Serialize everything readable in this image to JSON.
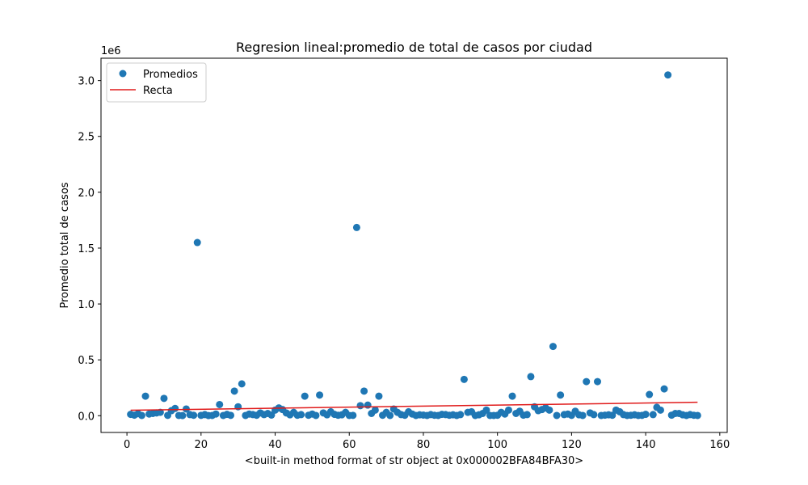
{
  "chart_data": {
    "type": "scatter",
    "title": "Regresion lineal:promedio de total de casos por ciudad",
    "xlabel": "<built-in method format of str object at 0x000002BFA84BFA30>",
    "ylabel": "Promedio total de casos",
    "y_offset_text": "1e6",
    "xlim": [
      -7,
      162
    ],
    "ylim": [
      -0.15,
      3.2
    ],
    "x_ticks": [
      0,
      20,
      40,
      60,
      80,
      100,
      120,
      140,
      160
    ],
    "x_tick_labels": [
      "0",
      "20",
      "40",
      "60",
      "80",
      "100",
      "120",
      "140",
      "160"
    ],
    "y_ticks": [
      0.0,
      0.5,
      1.0,
      1.5,
      2.0,
      2.5,
      3.0
    ],
    "y_tick_labels": [
      "0.0",
      "0.5",
      "1.0",
      "1.5",
      "2.0",
      "2.5",
      "3.0"
    ],
    "grid": false,
    "legend_position": "top-left",
    "series": [
      {
        "name": "Promedios",
        "kind": "scatter",
        "color": "#1f77b4",
        "x": [
          1,
          2,
          3,
          4,
          5,
          6,
          7,
          8,
          9,
          10,
          11,
          12,
          13,
          14,
          15,
          16,
          17,
          18,
          19,
          20,
          21,
          22,
          23,
          24,
          25,
          26,
          27,
          28,
          29,
          30,
          31,
          32,
          33,
          34,
          35,
          36,
          37,
          38,
          39,
          40,
          41,
          42,
          43,
          44,
          45,
          46,
          47,
          48,
          49,
          50,
          51,
          52,
          53,
          54,
          55,
          56,
          57,
          58,
          59,
          60,
          61,
          62,
          63,
          64,
          65,
          66,
          67,
          68,
          69,
          70,
          71,
          72,
          73,
          74,
          75,
          76,
          77,
          78,
          79,
          80,
          81,
          82,
          83,
          84,
          85,
          86,
          87,
          88,
          89,
          90,
          91,
          92,
          93,
          94,
          95,
          96,
          97,
          98,
          99,
          100,
          101,
          102,
          103,
          104,
          105,
          106,
          107,
          108,
          109,
          110,
          111,
          112,
          113,
          114,
          115,
          116,
          117,
          118,
          119,
          120,
          121,
          122,
          123,
          124,
          125,
          126,
          127,
          128,
          129,
          130,
          131,
          132,
          133,
          134,
          135,
          136,
          137,
          138,
          139,
          140,
          141,
          142,
          143,
          144,
          145,
          146,
          147,
          148,
          149,
          150,
          151,
          152,
          153,
          154
        ],
        "y": [
          0.012,
          0.005,
          0.018,
          0.002,
          0.175,
          0.015,
          0.02,
          0.025,
          0.03,
          0.155,
          0.003,
          0.045,
          0.065,
          0.002,
          0.001,
          0.06,
          0.01,
          0.004,
          1.55,
          0.003,
          0.01,
          0.001,
          0.002,
          0.015,
          0.1,
          0.002,
          0.012,
          0.003,
          0.22,
          0.08,
          0.285,
          0.002,
          0.015,
          0.01,
          0.004,
          0.025,
          0.01,
          0.02,
          0.006,
          0.05,
          0.07,
          0.055,
          0.025,
          0.008,
          0.03,
          0.004,
          0.01,
          0.175,
          0.004,
          0.015,
          0.002,
          0.185,
          0.025,
          0.008,
          0.035,
          0.012,
          0.004,
          0.008,
          0.03,
          0.002,
          0.003,
          1.685,
          0.09,
          0.22,
          0.095,
          0.02,
          0.05,
          0.175,
          0.004,
          0.03,
          0.002,
          0.06,
          0.03,
          0.01,
          0.004,
          0.035,
          0.015,
          0.002,
          0.008,
          0.006,
          0.002,
          0.01,
          0.004,
          0.002,
          0.012,
          0.01,
          0.004,
          0.008,
          0.002,
          0.01,
          0.325,
          0.03,
          0.035,
          0.002,
          0.008,
          0.02,
          0.05,
          0.002,
          0.002,
          0.004,
          0.03,
          0.015,
          0.05,
          0.175,
          0.02,
          0.04,
          0.005,
          0.01,
          0.35,
          0.08,
          0.045,
          0.055,
          0.07,
          0.05,
          0.62,
          0.002,
          0.185,
          0.01,
          0.015,
          0.003,
          0.04,
          0.008,
          0.002,
          0.305,
          0.025,
          0.01,
          0.305,
          0.002,
          0.005,
          0.008,
          0.004,
          0.05,
          0.035,
          0.01,
          0.002,
          0.004,
          0.008,
          0.002,
          0.003,
          0.012,
          0.19,
          0.01,
          0.075,
          0.05,
          0.24,
          3.05,
          0.005,
          0.02,
          0.02,
          0.008,
          0.002,
          0.01,
          0.004,
          0.002
        ]
      },
      {
        "name": "Recta",
        "kind": "line",
        "color": "#e01b1b",
        "x": [
          1,
          154
        ],
        "y": [
          0.049,
          0.12
        ]
      }
    ]
  }
}
